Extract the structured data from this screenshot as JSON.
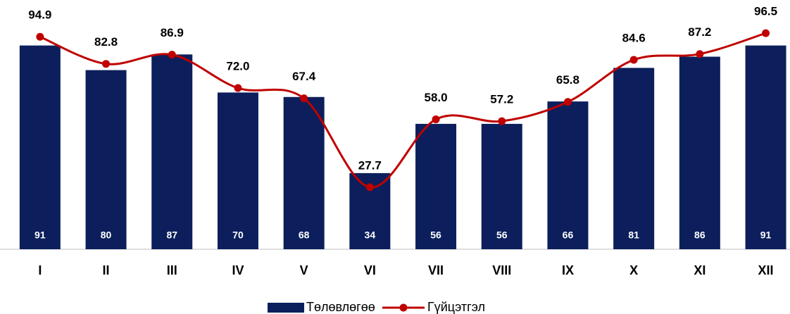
{
  "chart_data": {
    "type": "bar-line",
    "categories": [
      "I",
      "II",
      "III",
      "IV",
      "V",
      "VI",
      "VII",
      "VIII",
      "IX",
      "X",
      "XI",
      "XII"
    ],
    "ylim": [
      0,
      100
    ],
    "series": [
      {
        "name": "Төлөвлөгөө",
        "type": "bar",
        "color": "#0c1f5c",
        "values": [
          91,
          80,
          87,
          70,
          68,
          34,
          56,
          56,
          66,
          81,
          86,
          91
        ]
      },
      {
        "name": "Гүйцэтгэл",
        "type": "line",
        "color": "#c00000",
        "values": [
          94.9,
          82.8,
          86.9,
          72.0,
          67.4,
          27.7,
          58.0,
          57.2,
          65.8,
          84.6,
          87.2,
          96.5
        ],
        "value_labels": [
          "94.9",
          "82.8",
          "86.9",
          "72.0",
          "67.4",
          "27.7",
          "58.0",
          "57.2",
          "65.8",
          "84.6",
          "87.2",
          "96.5"
        ]
      }
    ]
  }
}
